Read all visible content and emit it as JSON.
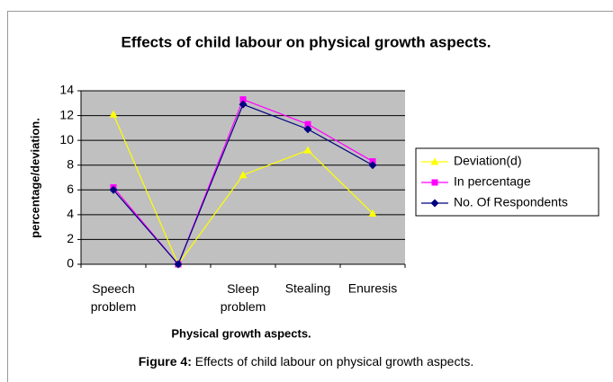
{
  "chart_data": {
    "type": "line",
    "title": "Effects of child labour on physical growth aspects.",
    "x_label": "Physical growth aspects.",
    "y_label": "percentage/deviation.",
    "categories": [
      "Speech problem",
      null,
      "Sleep problem",
      "Stealing",
      "Enuresis"
    ],
    "series": [
      {
        "name": "Deviation(d)",
        "color": "#ffff00",
        "marker": "triangle",
        "values": [
          12.1,
          0,
          7.2,
          9.2,
          4.1
        ]
      },
      {
        "name": "In percentage",
        "color": "#ff00ff",
        "marker": "square",
        "values": [
          6.2,
          0,
          13.3,
          11.3,
          8.3
        ]
      },
      {
        "name": "No. Of Respondents",
        "color": "#000080",
        "marker": "diamond",
        "values": [
          6,
          0,
          12.9,
          10.9,
          8
        ]
      }
    ],
    "ylim": [
      0,
      14
    ],
    "yticks": [
      0,
      2,
      4,
      6,
      8,
      10,
      12,
      14
    ],
    "grid": true,
    "legend": "right"
  },
  "caption": {
    "label": "Figure 4:",
    "text": " Effects of child labour on physical growth aspects."
  }
}
